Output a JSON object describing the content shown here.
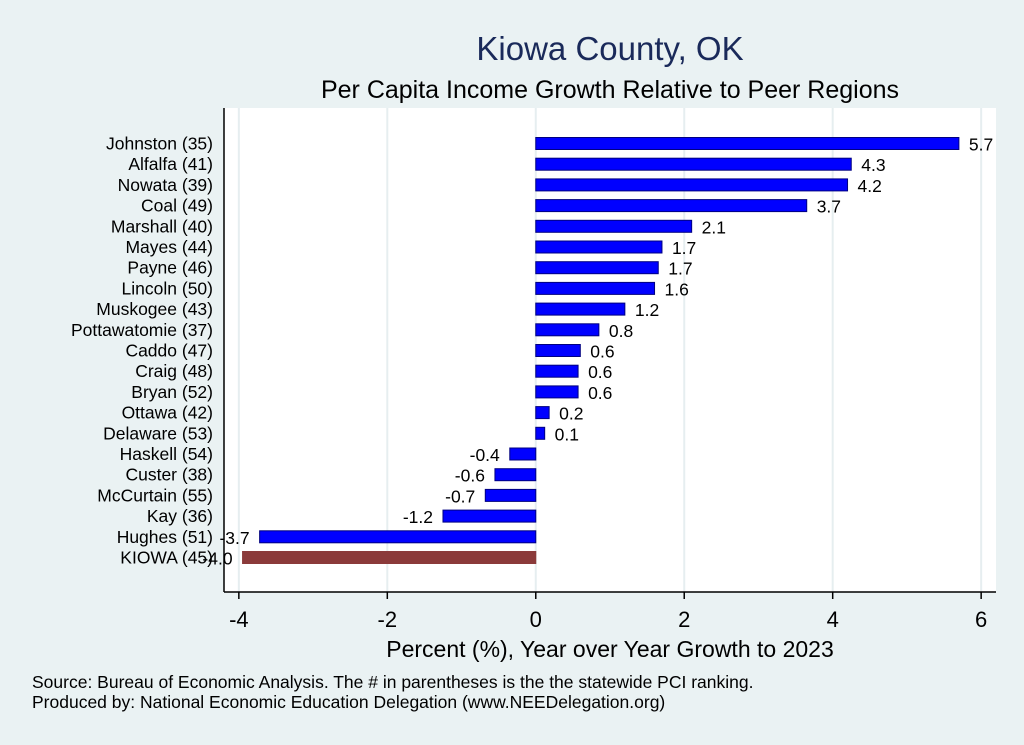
{
  "chart_data": {
    "type": "bar",
    "orientation": "horizontal",
    "title": "Kiowa County, OK",
    "subtitle": "Per Capita Income Growth Relative to Peer Regions",
    "xlabel": "Percent (%), Year over Year Growth to 2023",
    "ylabel": "",
    "xlim": [
      -4.2,
      6.2
    ],
    "xticks": [
      "-4",
      "-2",
      "0",
      "2",
      "4",
      "6"
    ],
    "xtick_values": [
      -4,
      -2,
      0,
      2,
      4,
      6
    ],
    "grid": "vertical lines",
    "legend": "none",
    "categories": [
      "Johnston (35)",
      "Alfalfa (41)",
      "Nowata (39)",
      "Coal (49)",
      "Marshall (40)",
      "Mayes (44)",
      "Payne (46)",
      "Lincoln (50)",
      "Muskogee (43)",
      "Pottawatomie (37)",
      "Caddo (47)",
      "Craig (48)",
      "Bryan (52)",
      "Ottawa (42)",
      "Delaware (53)",
      "Haskell (54)",
      "Custer (38)",
      "McCurtain (55)",
      "Kay (36)",
      "Hughes (51)",
      "KIOWA (45)"
    ],
    "values": [
      5.7,
      4.25,
      4.2,
      3.65,
      2.1,
      1.7,
      1.65,
      1.6,
      1.2,
      0.85,
      0.6,
      0.57,
      0.57,
      0.18,
      0.12,
      -0.35,
      -0.55,
      -0.68,
      -1.25,
      -3.72,
      -3.95
    ],
    "data_labels": [
      "5.7",
      "4.3",
      "4.2",
      "3.7",
      "2.1",
      "1.7",
      "1.7",
      "1.6",
      "1.2",
      "0.8",
      "0.6",
      "0.6",
      "0.6",
      "0.2",
      "0.1",
      "-0.4",
      "-0.6",
      "-0.7",
      "-1.2",
      "-3.7",
      "-4.0"
    ],
    "highlight": [
      false,
      false,
      false,
      false,
      false,
      false,
      false,
      false,
      false,
      false,
      false,
      false,
      false,
      false,
      false,
      false,
      false,
      false,
      false,
      false,
      true
    ],
    "colors": {
      "bar": "#0000ff",
      "bar_stroke": "#000080",
      "highlight": "#8b3a3a",
      "background": "#eaf2f3",
      "plot_bg": "#ffffff",
      "title": "#1a2a5a",
      "grid": "#e6eef0"
    }
  },
  "footer": {
    "source": "Source: Bureau of Economic Analysis. The # in parentheses is the the statewide PCI ranking.",
    "produced_by": "Produced by: National Economic Education Delegation (www.NEEDelegation.org)"
  }
}
